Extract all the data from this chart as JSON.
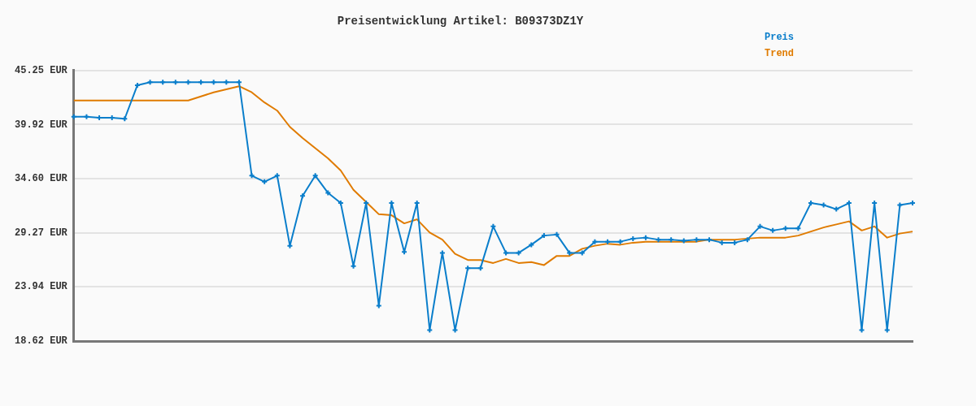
{
  "chart_data": {
    "type": "line",
    "title": "Preisentwicklung Artikel: B09373DZ1Y",
    "categories": [
      null,
      null,
      null,
      null,
      null,
      null,
      null,
      null,
      null,
      null,
      null,
      null,
      null,
      null,
      null,
      null,
      null,
      null,
      null,
      null,
      null,
      null,
      null,
      null,
      null,
      null,
      null,
      null,
      null,
      null,
      null,
      null,
      null,
      null,
      null,
      null,
      null,
      null,
      null,
      null,
      null,
      null,
      null,
      null,
      null,
      null,
      null,
      null,
      null,
      null,
      null,
      null,
      null,
      null,
      null,
      null,
      null,
      null,
      null,
      null,
      null,
      null,
      null,
      null,
      null,
      null,
      null
    ],
    "series": [
      {
        "name": "Preis",
        "color": "#0a7ecb",
        "marker": "cross",
        "values": [
          40.7,
          40.7,
          40.6,
          40.6,
          40.5,
          43.8,
          44.1,
          44.1,
          44.1,
          44.1,
          44.1,
          44.1,
          44.1,
          44.1,
          34.9,
          34.3,
          34.9,
          28.0,
          32.9,
          34.9,
          33.2,
          32.2,
          26.0,
          32.2,
          22.1,
          32.2,
          27.4,
          32.2,
          19.7,
          27.3,
          19.7,
          25.8,
          25.8,
          29.9,
          27.3,
          27.3,
          28.1,
          29.0,
          29.1,
          27.3,
          27.3,
          28.4,
          28.4,
          28.4,
          28.7,
          28.8,
          28.6,
          28.6,
          28.5,
          28.6,
          28.6,
          28.3,
          28.3,
          28.6,
          29.9,
          29.5,
          29.7,
          29.7,
          32.2,
          32.0,
          31.6,
          32.2,
          19.7,
          32.2,
          19.7,
          32.0,
          32.2
        ]
      },
      {
        "name": "Trend",
        "color": "#e07b00",
        "marker": "none",
        "values": [
          42.3,
          42.3,
          42.3,
          42.3,
          42.3,
          42.3,
          42.3,
          42.3,
          42.3,
          42.3,
          42.7,
          43.1,
          43.4,
          43.7,
          43.1,
          42.1,
          41.3,
          39.7,
          38.6,
          37.6,
          36.6,
          35.4,
          33.5,
          32.3,
          31.1,
          31.0,
          30.2,
          30.6,
          29.3,
          28.6,
          27.2,
          26.6,
          26.6,
          26.3,
          26.7,
          26.3,
          26.4,
          26.1,
          27.0,
          27.0,
          27.7,
          28.0,
          28.2,
          28.1,
          28.3,
          28.4,
          28.4,
          28.4,
          28.4,
          28.4,
          28.6,
          28.6,
          28.6,
          28.7,
          28.8,
          28.8,
          28.8,
          29.0,
          29.4,
          29.8,
          30.1,
          30.4,
          29.5,
          29.9,
          28.8,
          29.2,
          29.4
        ]
      }
    ],
    "ylim": [
      18.62,
      45.25
    ],
    "yticks": [
      {
        "value": 18.62,
        "label": "18.62 EUR"
      },
      {
        "value": 23.94,
        "label": "23.94 EUR"
      },
      {
        "value": 29.27,
        "label": "29.27 EUR"
      },
      {
        "value": 34.6,
        "label": "34.60 EUR"
      },
      {
        "value": 39.92,
        "label": "39.92 EUR"
      },
      {
        "value": 45.25,
        "label": "45.25 EUR"
      }
    ],
    "grid": "y",
    "legend": "top right",
    "tick_labels": "y"
  }
}
